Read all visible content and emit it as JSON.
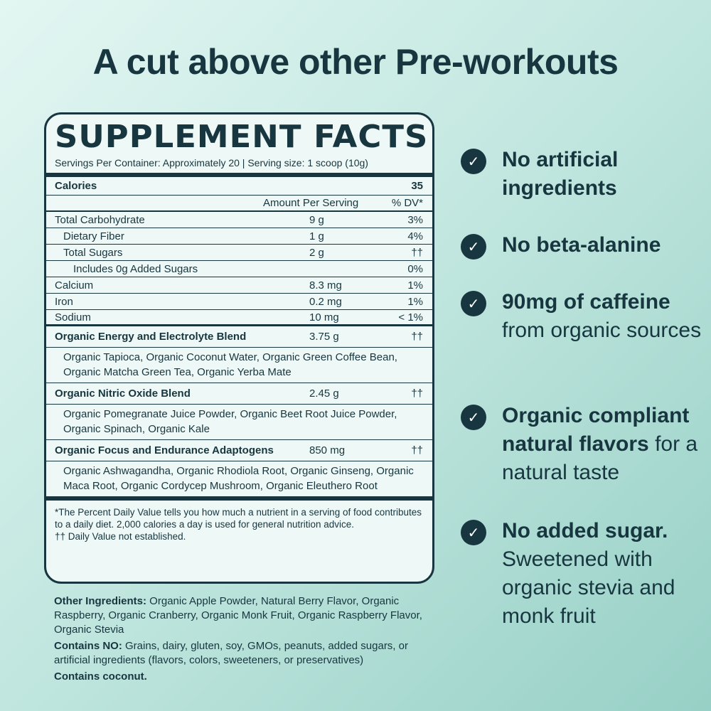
{
  "title": "A cut above other Pre-workouts",
  "facts": {
    "heading": "SUPPLEMENT FACTS",
    "servings": "Servings Per Container:  Approximately 20  |  Serving size: 1 scoop (10g)",
    "calories_label": "Calories",
    "calories_value": "35",
    "amount_header": "Amount Per Serving",
    "dv_header": "% DV*",
    "rows": [
      {
        "name": "Total Carbohydrate",
        "amount": "9 g",
        "dv": "3%"
      },
      {
        "name": "Dietary Fiber",
        "amount": "1 g",
        "dv": "4%"
      },
      {
        "name": "Total Sugars",
        "amount": "2 g",
        "dv": "††"
      },
      {
        "name": "Includes 0g Added Sugars",
        "amount": "",
        "dv": "0%"
      },
      {
        "name": "Calcium",
        "amount": "8.3 mg",
        "dv": "1%"
      },
      {
        "name": "Iron",
        "amount": "0.2 mg",
        "dv": "1%"
      },
      {
        "name": "Sodium",
        "amount": "10 mg",
        "dv": "< 1%"
      }
    ],
    "blends": [
      {
        "name": "Organic Energy and Electrolyte Blend",
        "amount": "3.75 g",
        "dv": "††",
        "desc": "Organic Tapioca, Organic Coconut Water, Organic Green Coffee Bean, Organic Matcha Green Tea, Organic Yerba Mate"
      },
      {
        "name": "Organic Nitric Oxide Blend",
        "amount": "2.45 g",
        "dv": "††",
        "desc": "Organic Pomegranate Juice Powder, Organic Beet Root Juice Powder, Organic Spinach, Organic Kale"
      },
      {
        "name": "Organic Focus and Endurance Adaptogens",
        "amount": "850 mg",
        "dv": "††",
        "desc": "Organic Ashwagandha, Organic Rhodiola Root, Organic Ginseng, Organic Maca Root, Organic Cordycep Mushroom, Organic Eleuthero Root"
      }
    ],
    "footnote1": "*The Percent Daily Value tells you how much a nutrient in a serving of food contributes to a daily diet. 2,000 calories a day is used for general nutrition advice.",
    "footnote2": "†† Daily Value not established."
  },
  "other": {
    "ingredients_label": "Other Ingredients:",
    "ingredients": " Organic Apple Powder, Natural Berry Flavor, Organic Raspberry, Organic Cranberry, Organic Monk Fruit, Organic Raspberry Flavor, Organic Stevia",
    "contains_no_label": "Contains NO:",
    "contains_no": " Grains, dairy, gluten, soy, GMOs, peanuts, added sugars, or artificial ingredients (flavors, colors, sweeteners, or preservatives)",
    "contains": "Contains coconut."
  },
  "benefits": [
    {
      "icon": "check-icon",
      "bold": "No artificial ingredients",
      "rest": ""
    },
    {
      "icon": "check-icon",
      "bold": "No beta-alanine",
      "rest": ""
    },
    {
      "icon": "check-icon",
      "bold": "90mg of caffeine",
      "rest": " from organic sources"
    },
    {
      "icon": "check-icon",
      "bold": "Organic compliant natural flavors",
      "rest": " for a natural taste"
    },
    {
      "icon": "check-icon",
      "bold": "No added sugar.",
      "rest": " Sweetened with organic stevia and monk fruit"
    }
  ],
  "colors": {
    "text": "#17363f",
    "panel": "#eef8f6",
    "bg_light": "#e3f6f2",
    "bg_dark": "#97d0c6"
  }
}
